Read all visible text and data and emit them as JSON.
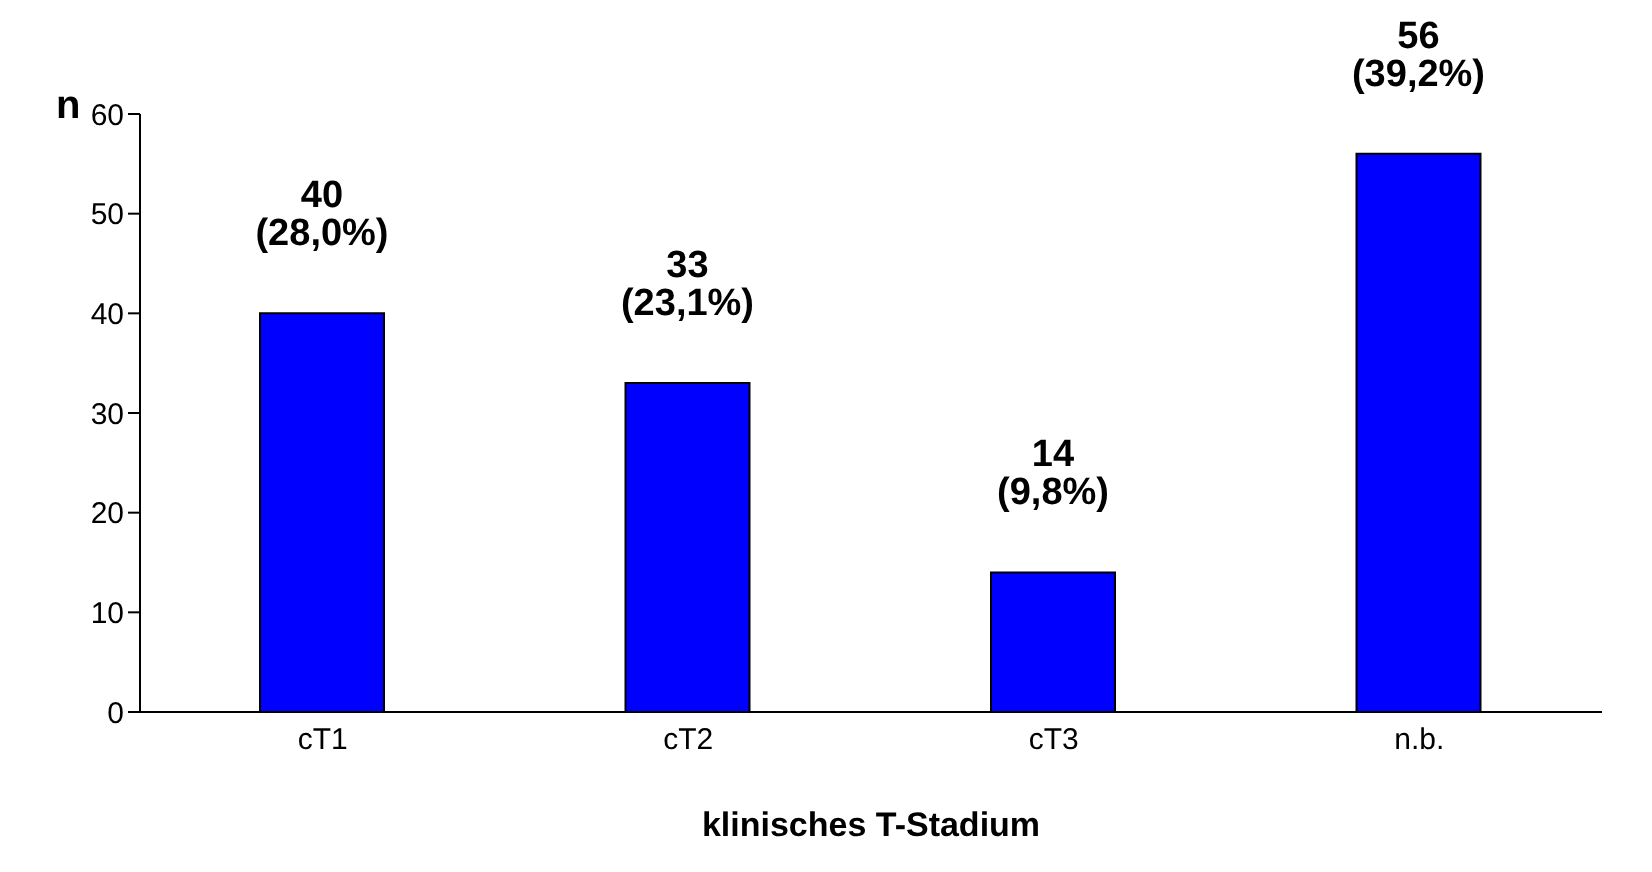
{
  "chart_data": {
    "type": "bar",
    "xlabel": "klinisches T-Stadium",
    "ylabel": "n",
    "categories": [
      "cT1",
      "cT2",
      "cT3",
      "n.b."
    ],
    "values": [
      40,
      33,
      14,
      56
    ],
    "value_labels": [
      "40 (28,0%)",
      "33 (23,1%)",
      "14 (9,8%)",
      "56 (39,2%)"
    ],
    "color": "#0000ff",
    "ylim": [
      0,
      60
    ],
    "yticks": [
      0,
      10,
      20,
      30,
      40,
      50,
      60
    ],
    "grid": false,
    "legend": false
  }
}
